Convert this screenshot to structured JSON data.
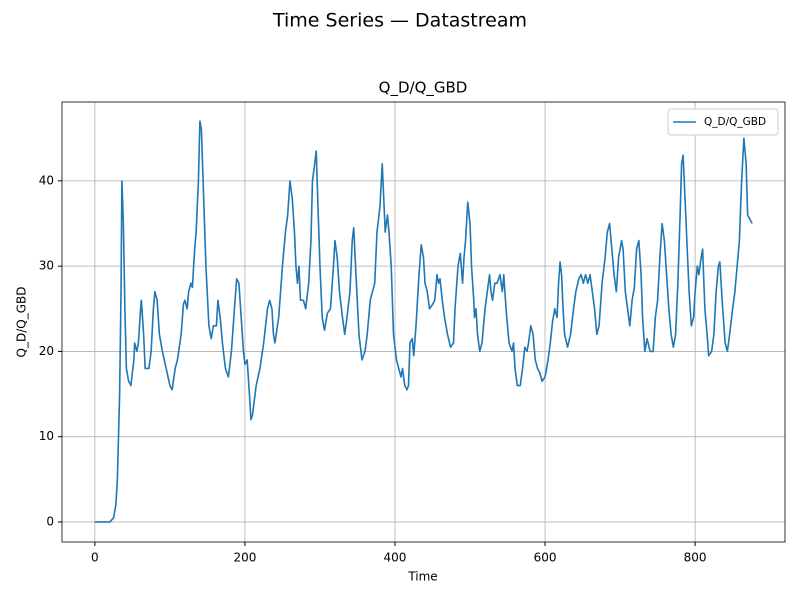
{
  "chart_data": {
    "type": "line",
    "suptitle": "Time Series — Datastream",
    "title": "Q_D/Q_GBD",
    "xlabel": "Time",
    "ylabel": "Q_D/Q_GBD",
    "xlim": [
      -43.8,
      919.8
    ],
    "ylim": [
      -2.35,
      49.25
    ],
    "xticks": [
      0,
      200,
      400,
      600,
      800
    ],
    "yticks": [
      0,
      10,
      20,
      30,
      40
    ],
    "grid": true,
    "legend": "upper right",
    "x": [
      0,
      10,
      20,
      25,
      28,
      30,
      33,
      35,
      36,
      38,
      40,
      42,
      45,
      48,
      52,
      53,
      56,
      58,
      61,
      62,
      65,
      67,
      72,
      75,
      78,
      80,
      83,
      86,
      90,
      95,
      100,
      103,
      107,
      110,
      115,
      118,
      120,
      123,
      125,
      128,
      130,
      133,
      135,
      138,
      140,
      142,
      145,
      148,
      152,
      155,
      158,
      162,
      164,
      167,
      170,
      174,
      178,
      182,
      186,
      189,
      192,
      195,
      198,
      200,
      203,
      206,
      208,
      210,
      215,
      220,
      225,
      230,
      233,
      236,
      238,
      240,
      245,
      250,
      254,
      257,
      260,
      263,
      266,
      268,
      270,
      272,
      274,
      278,
      281,
      285,
      288,
      290,
      293,
      295,
      297,
      300,
      303,
      306,
      310,
      314,
      318,
      320,
      323,
      326,
      330,
      333,
      336,
      340,
      343,
      345,
      348,
      352,
      356,
      360,
      363,
      367,
      370,
      373,
      376,
      380,
      383,
      385,
      387,
      390,
      392,
      395,
      398,
      402,
      405,
      408,
      410,
      413,
      416,
      418,
      420,
      423,
      425,
      428,
      432,
      435,
      438,
      440,
      443,
      446,
      450,
      453,
      456,
      458,
      460,
      463,
      466,
      470,
      474,
      478,
      480,
      484,
      487,
      490,
      492,
      494,
      497,
      500,
      502,
      505,
      506,
      508,
      510,
      513,
      516,
      520,
      523,
      526,
      528,
      530,
      533,
      536,
      540,
      543,
      545,
      548,
      552,
      556,
      558,
      560,
      563,
      567,
      570,
      573,
      576,
      578,
      581,
      584,
      587,
      590,
      593,
      596,
      600,
      604,
      607,
      610,
      613,
      616,
      618,
      620,
      622,
      624,
      626,
      630,
      634,
      638,
      641,
      645,
      648,
      651,
      654,
      657,
      660,
      663,
      666,
      669,
      672,
      676,
      680,
      683,
      686,
      689,
      692,
      695,
      698,
      702,
      704,
      707,
      710,
      713,
      716,
      719,
      722,
      725,
      728,
      730,
      733,
      736,
      740,
      744,
      747,
      750,
      753,
      756,
      759,
      762,
      765,
      768,
      771,
      774,
      777,
      780,
      782,
      784,
      786,
      789,
      792,
      795,
      798,
      800,
      803,
      805,
      808,
      810,
      813,
      816,
      818,
      822,
      825,
      828,
      831,
      833,
      836,
      840,
      843,
      846,
      850,
      853,
      856,
      859,
      862,
      865,
      868,
      870,
      873,
      876
    ],
    "series": [
      {
        "name": "Q_D/Q_GBD",
        "color": "#1f77b4",
        "values": [
          0,
          0,
          0,
          0.5,
          2,
          5,
          15,
          28,
          40,
          35,
          25,
          18,
          16.5,
          16,
          19,
          21,
          20,
          21,
          25,
          26,
          22,
          18,
          18,
          20,
          25,
          27,
          26,
          22,
          20,
          18,
          16,
          15.5,
          18,
          19,
          22,
          25.5,
          26,
          25,
          27,
          28,
          27.5,
          32,
          34,
          40,
          47,
          46,
          38,
          30,
          23,
          21.5,
          23,
          23,
          26,
          24,
          21,
          18,
          17,
          20,
          25,
          28.5,
          28,
          24,
          20,
          18.5,
          19,
          15,
          12,
          12.5,
          16,
          18,
          21,
          25,
          26,
          25,
          22,
          21,
          24,
          30,
          34,
          36,
          40,
          38,
          34,
          30,
          28,
          30,
          26,
          26,
          25,
          28,
          33,
          40,
          42,
          43.5,
          38,
          30,
          24,
          22.5,
          24.5,
          25,
          30,
          33,
          31,
          27,
          24,
          22,
          24,
          27,
          33,
          34.5,
          29,
          22,
          19,
          20,
          22,
          26,
          27,
          28,
          34,
          37,
          42,
          38,
          34,
          36,
          34,
          30,
          22,
          19,
          18,
          17,
          18,
          16,
          15.5,
          16,
          21,
          21.5,
          19.5,
          23,
          29,
          32.5,
          31,
          28,
          27,
          25,
          25.5,
          26,
          29,
          28,
          28.5,
          26,
          24,
          22,
          20.5,
          21,
          25,
          30,
          31.5,
          28,
          31,
          33,
          37.5,
          35,
          30,
          26,
          24,
          25,
          22,
          20,
          21,
          25,
          27,
          29,
          27,
          26,
          28,
          28,
          29,
          27,
          29,
          25,
          21,
          20,
          21,
          18,
          16,
          16,
          18,
          20.5,
          20,
          21,
          23,
          22,
          19,
          18,
          17.5,
          16.5,
          17,
          19,
          21,
          23.5,
          25,
          24,
          28,
          30.5,
          29,
          25,
          22,
          20.5,
          22,
          25,
          27,
          28.5,
          29,
          28,
          29,
          28,
          29,
          27,
          25,
          22,
          23,
          28,
          31,
          34,
          35,
          32,
          29,
          27,
          31,
          33,
          32,
          27,
          25,
          23,
          26,
          27.5,
          32,
          33,
          29,
          24,
          20,
          21.5,
          20,
          20,
          24,
          26,
          31,
          35,
          33,
          29,
          25,
          22,
          20.5,
          22,
          28,
          36,
          42,
          43,
          39,
          33,
          27,
          23,
          24,
          27,
          30,
          29,
          31,
          32,
          25,
          22,
          19.5,
          20,
          22,
          27,
          30,
          30.5,
          26,
          21,
          20,
          22,
          25,
          27,
          30,
          33,
          40,
          45,
          42,
          36,
          35.5,
          35
        ]
      }
    ]
  }
}
